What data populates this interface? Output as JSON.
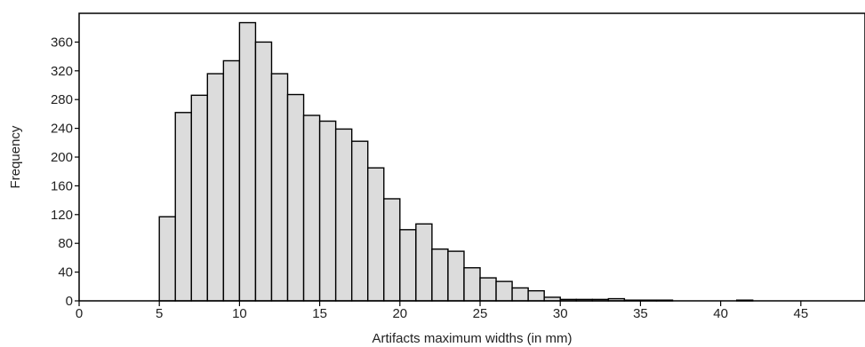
{
  "chart_data": {
    "type": "bar",
    "title": "",
    "xlabel": "Artifacts maximum widths (in mm)",
    "ylabel": "Frequency",
    "xlim": [
      0,
      49
    ],
    "ylim": [
      0,
      400
    ],
    "bin_width": 1,
    "x_ticks": [
      "0",
      "5",
      "10",
      "15",
      "20",
      "25",
      "30",
      "35",
      "40",
      "45"
    ],
    "y_ticks": [
      "0",
      "40",
      "80",
      "120",
      "160",
      "200",
      "240",
      "280",
      "320",
      "360"
    ],
    "grid": false,
    "legend": "none",
    "bar_fill": "#dcdcdc",
    "bar_stroke": "#000000",
    "bins": [
      {
        "x0": 5,
        "x1": 6,
        "value": 117
      },
      {
        "x0": 6,
        "x1": 7,
        "value": 262
      },
      {
        "x0": 7,
        "x1": 8,
        "value": 286
      },
      {
        "x0": 8,
        "x1": 9,
        "value": 316
      },
      {
        "x0": 9,
        "x1": 10,
        "value": 334
      },
      {
        "x0": 10,
        "x1": 11,
        "value": 387
      },
      {
        "x0": 11,
        "x1": 12,
        "value": 360
      },
      {
        "x0": 12,
        "x1": 13,
        "value": 316
      },
      {
        "x0": 13,
        "x1": 14,
        "value": 287
      },
      {
        "x0": 14,
        "x1": 15,
        "value": 258
      },
      {
        "x0": 15,
        "x1": 16,
        "value": 250
      },
      {
        "x0": 16,
        "x1": 17,
        "value": 239
      },
      {
        "x0": 17,
        "x1": 18,
        "value": 222
      },
      {
        "x0": 18,
        "x1": 19,
        "value": 185
      },
      {
        "x0": 19,
        "x1": 20,
        "value": 142
      },
      {
        "x0": 20,
        "x1": 21,
        "value": 99
      },
      {
        "x0": 21,
        "x1": 22,
        "value": 107
      },
      {
        "x0": 22,
        "x1": 23,
        "value": 72
      },
      {
        "x0": 23,
        "x1": 24,
        "value": 69
      },
      {
        "x0": 24,
        "x1": 25,
        "value": 46
      },
      {
        "x0": 25,
        "x1": 26,
        "value": 32
      },
      {
        "x0": 26,
        "x1": 27,
        "value": 27
      },
      {
        "x0": 27,
        "x1": 28,
        "value": 18
      },
      {
        "x0": 28,
        "x1": 29,
        "value": 14
      },
      {
        "x0": 29,
        "x1": 30,
        "value": 5
      },
      {
        "x0": 30,
        "x1": 31,
        "value": 2
      },
      {
        "x0": 31,
        "x1": 32,
        "value": 2
      },
      {
        "x0": 32,
        "x1": 33,
        "value": 2
      },
      {
        "x0": 33,
        "x1": 34,
        "value": 3
      },
      {
        "x0": 34,
        "x1": 35,
        "value": 1
      },
      {
        "x0": 35,
        "x1": 36,
        "value": 1
      },
      {
        "x0": 36,
        "x1": 37,
        "value": 1
      },
      {
        "x0": 41,
        "x1": 42,
        "value": 1
      }
    ]
  }
}
